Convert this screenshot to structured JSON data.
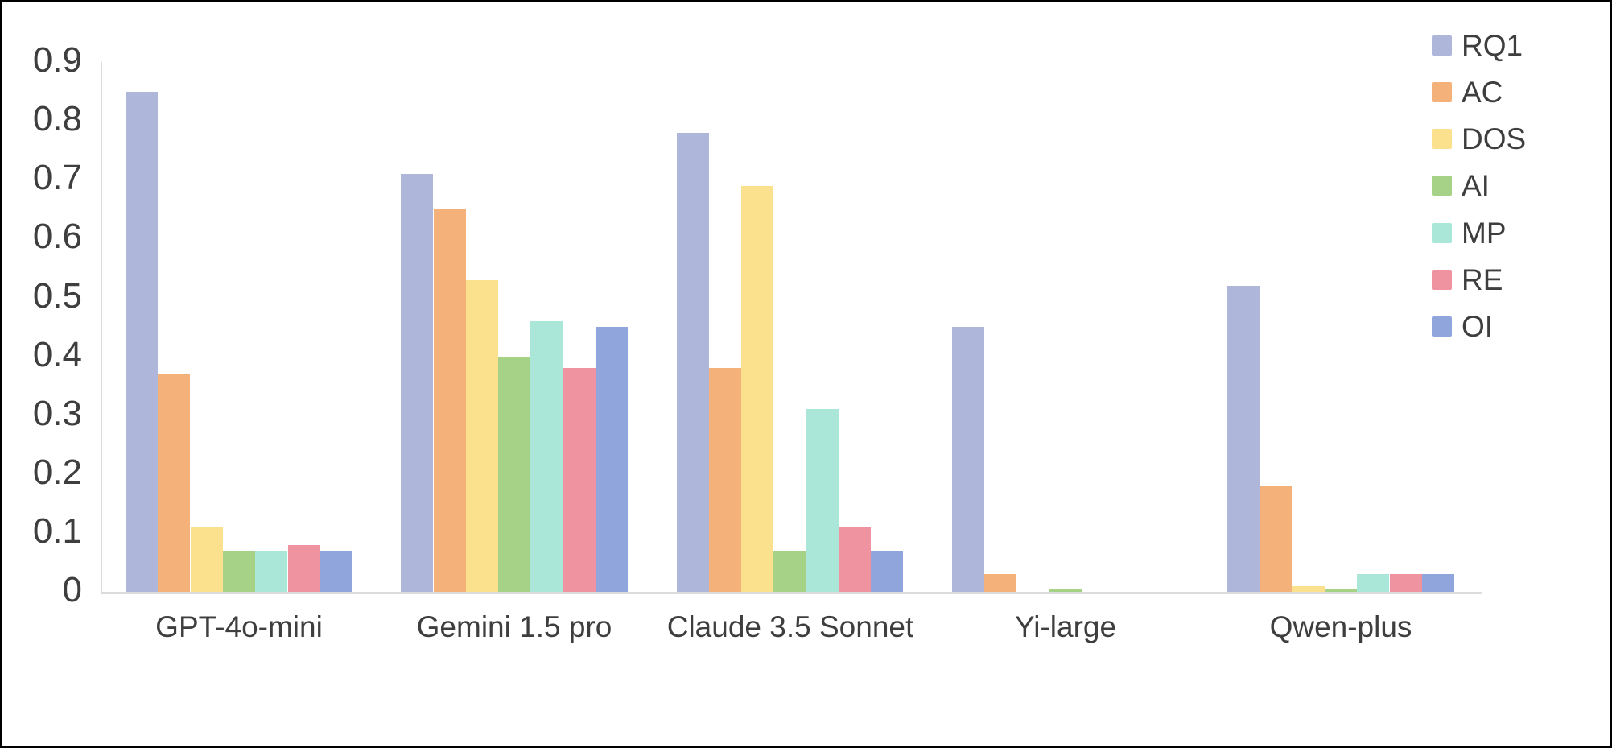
{
  "chart_data": {
    "type": "bar",
    "title": "",
    "xlabel": "",
    "ylabel": "",
    "categories": [
      "GPT-4o-mini",
      "Gemini 1.5 pro",
      "Claude 3.5 Sonnet",
      "Yi-large",
      "Qwen-plus"
    ],
    "series": [
      {
        "name": "RQ1",
        "color": "#aeb7d9",
        "values": [
          0.85,
          0.71,
          0.78,
          0.45,
          0.52
        ]
      },
      {
        "name": "AC",
        "color": "#f5b17a",
        "values": [
          0.37,
          0.65,
          0.38,
          0.03,
          0.18
        ]
      },
      {
        "name": "DOS",
        "color": "#fbe08e",
        "values": [
          0.11,
          0.53,
          0.69,
          0.0,
          0.01
        ]
      },
      {
        "name": "AI",
        "color": "#a5d286",
        "values": [
          0.07,
          0.4,
          0.07,
          0.005,
          0.005
        ]
      },
      {
        "name": "MP",
        "color": "#abe7d9",
        "values": [
          0.07,
          0.46,
          0.31,
          0.0,
          0.03
        ]
      },
      {
        "name": "RE",
        "color": "#ef93a1",
        "values": [
          0.08,
          0.38,
          0.11,
          0.0,
          0.03
        ]
      },
      {
        "name": "OI",
        "color": "#8fa5dc",
        "values": [
          0.07,
          0.45,
          0.07,
          0.0,
          0.03
        ]
      }
    ],
    "ylim": [
      0,
      0.9
    ],
    "yticks": [
      "0",
      "0.1",
      "0.2",
      "0.3",
      "0.4",
      "0.5",
      "0.6",
      "0.7",
      "0.8",
      "0.9"
    ],
    "grid": false,
    "legend_position": "top-right"
  },
  "style": {
    "axis_line_color": "#dcdcdc",
    "text_color": "#3e3e3e",
    "background": "#ffffff",
    "frame_color": "#000000"
  }
}
